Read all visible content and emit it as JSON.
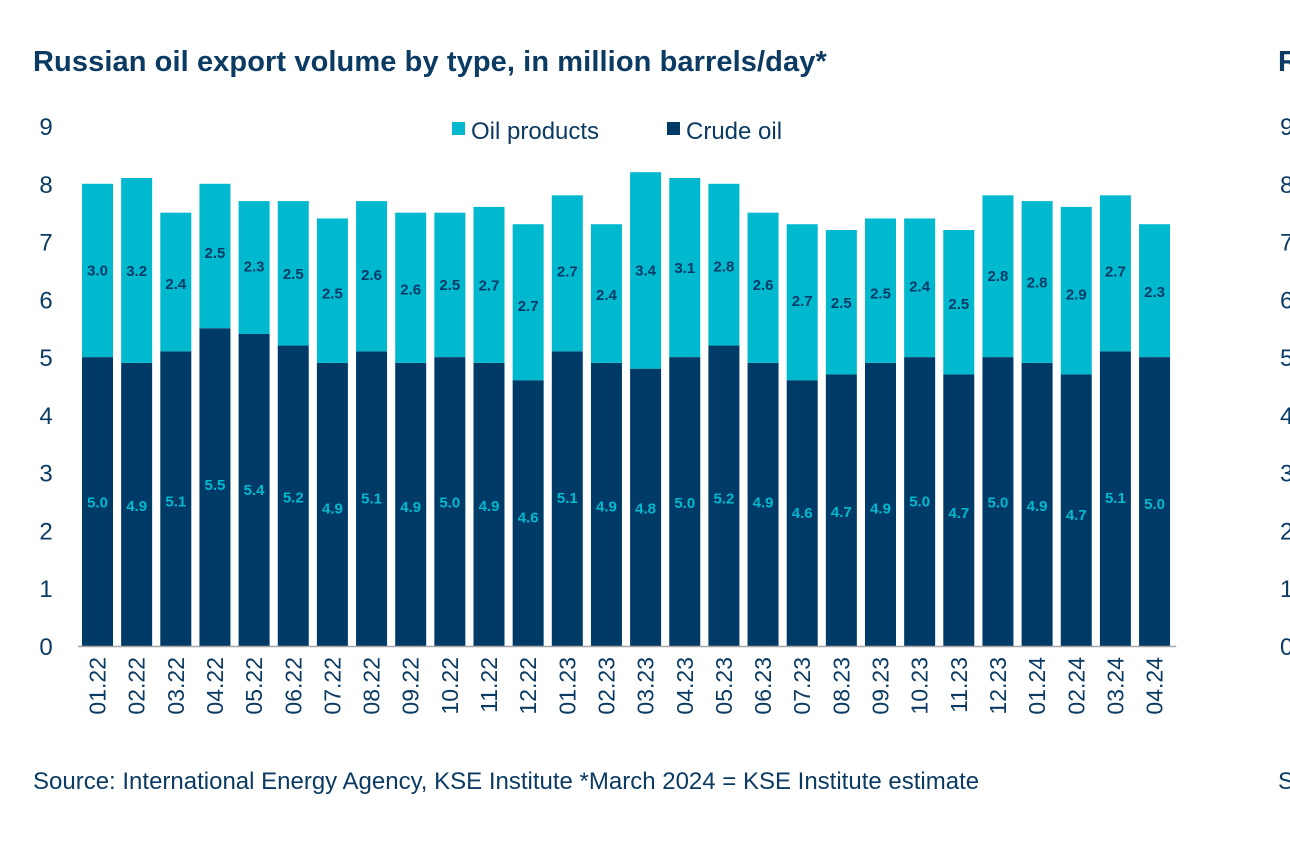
{
  "page": {
    "title": "Russian oil export volume by type, in million barrels/day*",
    "source": "Source: International Energy Agency, KSE Institute *March 2024 = KSE Institute estimate",
    "next_chart_title_fragment": "R",
    "next_chart_source_fragment": "S",
    "next_chart_y_ticks": [
      "9",
      "8",
      "7",
      "6",
      "5",
      "4",
      "3",
      "2",
      "1",
      "0"
    ]
  },
  "colors": {
    "oil_products": "#00b9cf",
    "crude_oil": "#003a66",
    "text": "#0b3b63",
    "axis": "#a6a6a6"
  },
  "chart_data": {
    "type": "bar",
    "stacked": true,
    "title": "Russian oil export volume by type, in million barrels/day*",
    "xlabel": "",
    "ylabel": "",
    "ylim": [
      0,
      9
    ],
    "y_ticks": [
      0,
      1,
      2,
      3,
      4,
      5,
      6,
      7,
      8,
      9
    ],
    "grid": false,
    "legend": {
      "placement": "top-center",
      "entries": [
        "Oil products",
        "Crude oil"
      ]
    },
    "categories": [
      "01.22",
      "02.22",
      "03.22",
      "04.22",
      "05.22",
      "06.22",
      "07.22",
      "08.22",
      "09.22",
      "10.22",
      "11.22",
      "12.22",
      "01.23",
      "02.23",
      "03.23",
      "04.23",
      "05.23",
      "06.23",
      "07.23",
      "08.23",
      "09.23",
      "10.23",
      "11.23",
      "12.23",
      "01.24",
      "02.24",
      "03.24",
      "04.24"
    ],
    "series": [
      {
        "name": "Crude oil",
        "values": [
          5.0,
          4.9,
          5.1,
          5.5,
          5.4,
          5.2,
          4.9,
          5.1,
          4.9,
          5.0,
          4.9,
          4.6,
          5.1,
          4.9,
          4.8,
          5.0,
          5.2,
          4.9,
          4.6,
          4.7,
          4.9,
          5.0,
          4.7,
          5.0,
          4.9,
          4.7,
          5.1,
          5.0
        ]
      },
      {
        "name": "Oil products",
        "values": [
          3.0,
          3.2,
          2.4,
          2.5,
          2.3,
          2.5,
          2.5,
          2.6,
          2.6,
          2.5,
          2.7,
          2.7,
          2.7,
          2.4,
          3.4,
          3.1,
          2.8,
          2.6,
          2.7,
          2.5,
          2.5,
          2.4,
          2.5,
          2.8,
          2.8,
          2.9,
          2.7,
          2.3
        ]
      }
    ],
    "data_labels": true,
    "source": "Source: International Energy Agency, KSE Institute *March 2024 = KSE Institute estimate"
  }
}
